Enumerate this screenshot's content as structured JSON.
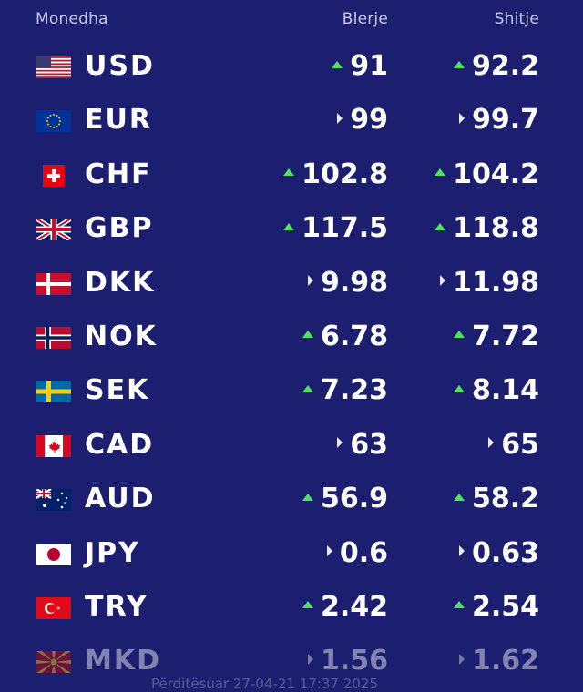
{
  "header": {
    "currency": "Monedha",
    "buy": "Blerje",
    "sell": "Shitje"
  },
  "rows": [
    {
      "code": "USD",
      "flag": "us-flag-icon",
      "buy": "91",
      "buy_trend": "up",
      "sell": "92.2",
      "sell_trend": "up"
    },
    {
      "code": "EUR",
      "flag": "eu-flag-icon",
      "buy": "99",
      "buy_trend": "same",
      "sell": "99.7",
      "sell_trend": "same"
    },
    {
      "code": "CHF",
      "flag": "ch-flag-icon",
      "buy": "102.8",
      "buy_trend": "up",
      "sell": "104.2",
      "sell_trend": "up"
    },
    {
      "code": "GBP",
      "flag": "gb-flag-icon",
      "buy": "117.5",
      "buy_trend": "up",
      "sell": "118.8",
      "sell_trend": "up"
    },
    {
      "code": "DKK",
      "flag": "dk-flag-icon",
      "buy": "9.98",
      "buy_trend": "same",
      "sell": "11.98",
      "sell_trend": "same"
    },
    {
      "code": "NOK",
      "flag": "no-flag-icon",
      "buy": "6.78",
      "buy_trend": "up",
      "sell": "7.72",
      "sell_trend": "up"
    },
    {
      "code": "SEK",
      "flag": "se-flag-icon",
      "buy": "7.23",
      "buy_trend": "up",
      "sell": "8.14",
      "sell_trend": "up"
    },
    {
      "code": "CAD",
      "flag": "ca-flag-icon",
      "buy": "63",
      "buy_trend": "same",
      "sell": "65",
      "sell_trend": "same"
    },
    {
      "code": "AUD",
      "flag": "au-flag-icon",
      "buy": "56.9",
      "buy_trend": "up",
      "sell": "58.2",
      "sell_trend": "up"
    },
    {
      "code": "JPY",
      "flag": "jp-flag-icon",
      "buy": "0.6",
      "buy_trend": "same",
      "sell": "0.63",
      "sell_trend": "same"
    },
    {
      "code": "TRY",
      "flag": "tr-flag-icon",
      "buy": "2.42",
      "buy_trend": "up",
      "sell": "2.54",
      "sell_trend": "up"
    },
    {
      "code": "MKD",
      "flag": "mk-flag-icon",
      "buy": "1.56",
      "buy_trend": "same",
      "sell": "1.62",
      "sell_trend": "same"
    }
  ],
  "footer": {
    "updated": "Përditësuar 27-04-21 17:37 2025"
  },
  "colors": {
    "background": "#1c1e6f",
    "up": "#4fe35a",
    "same": "#e9e9f2",
    "header_text": "#c8cbe6"
  }
}
